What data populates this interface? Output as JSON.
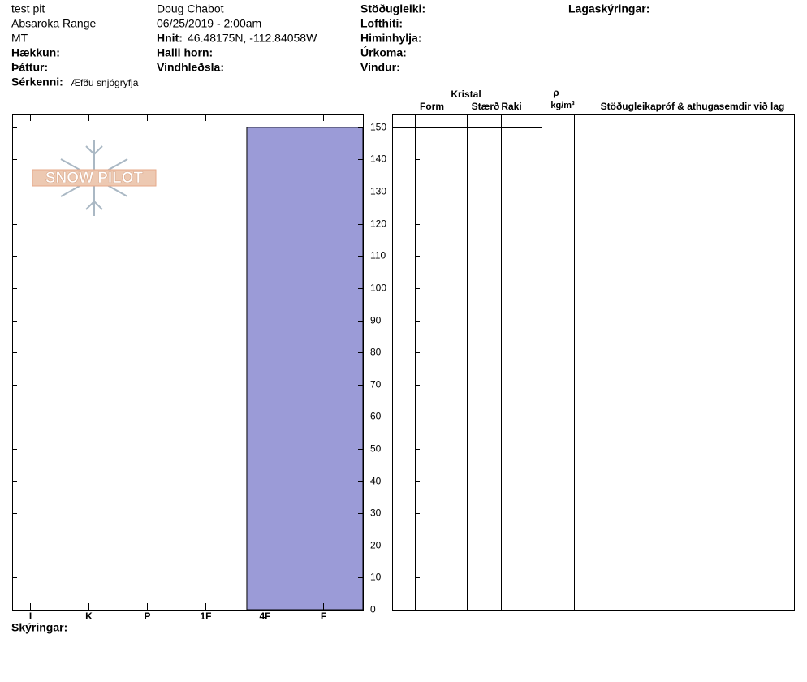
{
  "header": {
    "pit_name": "test pit",
    "range": "Absaroka Range",
    "state": "MT",
    "elevation_label": "Hækkun:",
    "aspect_label": "Þáttur:",
    "specifics_label": "Sérkenni:",
    "specifics_value": "Æfðu snjógryfja",
    "observer": "Doug Chabot",
    "datetime": "06/25/2019 - 2:00am",
    "coords_label": "Hnit:",
    "coords_value": "46.48175N, -112.84058W",
    "slope_label": "Halli horn:",
    "wind_loading_label": "Vindhleðsla:",
    "stability_label": "Stöðugleiki:",
    "air_temp_label": "Lofthiti:",
    "sky_label": "Himinhylja:",
    "precip_label": "Úrkoma:",
    "wind_label": "Vindur:",
    "layer_notes_label": "Lagaskýringar:"
  },
  "logo": {
    "text": "SNOW PILOT"
  },
  "profile_table": {
    "group": "Kristal",
    "form": "Form",
    "size": "Stærð",
    "moisture": "Raki",
    "density_symbol": "ρ",
    "density_unit": "kg/m³",
    "comments": "Stöðugleikapróf & athugasemdir við lag"
  },
  "footer": {
    "notes_label": "Skýringar:"
  },
  "chart_data": {
    "type": "snow-profile",
    "layers": [
      {
        "top": 150,
        "bottom": 0,
        "hardness": 2.3
      }
    ],
    "color": "#9b9bd7",
    "xlim": [
      6.3,
      0.32
    ],
    "xticks": [
      {
        "value": 6,
        "label": "I"
      },
      {
        "value": 5,
        "label": "K"
      },
      {
        "value": 4,
        "label": "P"
      },
      {
        "value": 3,
        "label": "1F"
      },
      {
        "value": 2,
        "label": "4F"
      },
      {
        "value": 1,
        "label": "F"
      }
    ],
    "ylim": [
      0,
      154
    ],
    "yticks": [
      0,
      10,
      20,
      30,
      40,
      50,
      60,
      70,
      80,
      90,
      100,
      110,
      120,
      130,
      140,
      150
    ]
  }
}
